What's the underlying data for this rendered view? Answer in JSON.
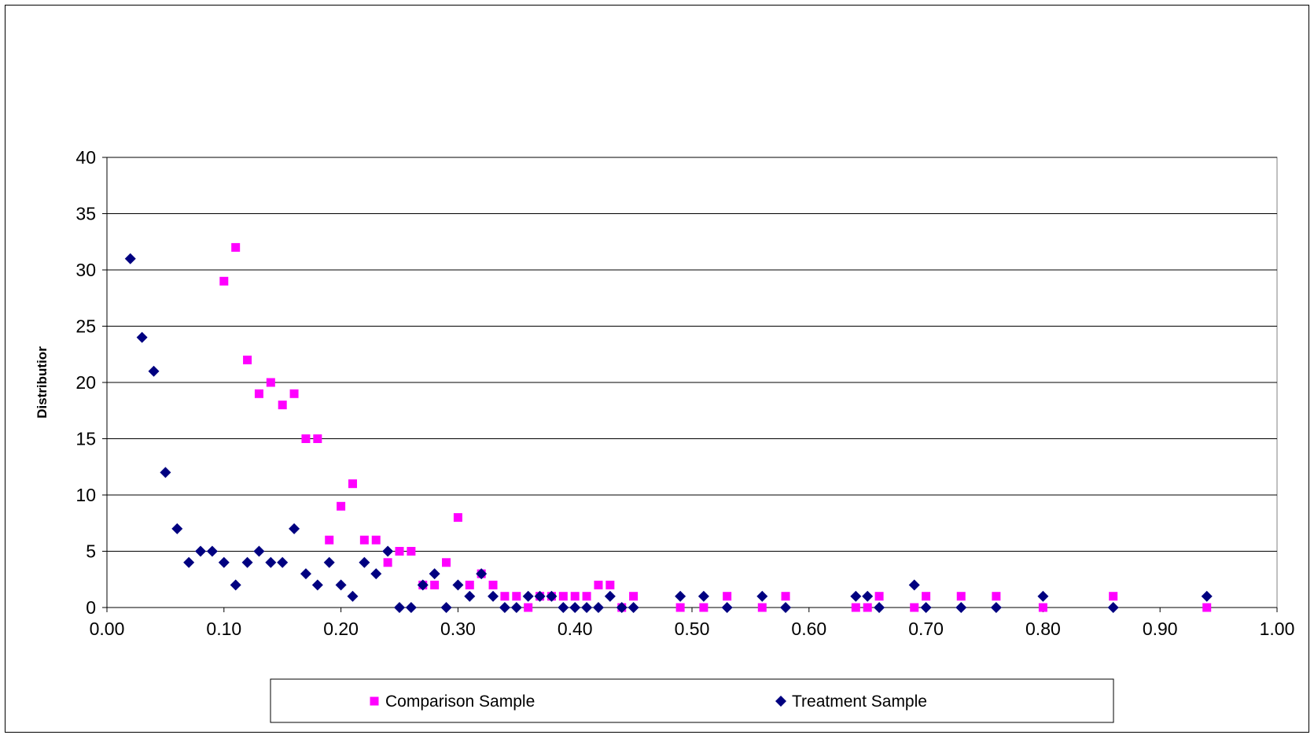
{
  "chart_data": {
    "type": "scatter",
    "title": "",
    "xlabel": "",
    "ylabel": "Distributior",
    "xlim": [
      0,
      1
    ],
    "ylim": [
      0,
      40
    ],
    "x_ticks": [
      "0.00",
      "0.10",
      "0.20",
      "0.30",
      "0.40",
      "0.50",
      "0.60",
      "0.70",
      "0.80",
      "0.90",
      "1.00"
    ],
    "y_ticks": [
      "0",
      "5",
      "10",
      "15",
      "20",
      "25",
      "30",
      "35",
      "40"
    ],
    "grid": "horizontal",
    "legend_position": "bottom",
    "series": [
      {
        "name": "Comparison Sample",
        "color": "#ff00ff",
        "marker": "square",
        "points": [
          [
            0.1,
            29
          ],
          [
            0.11,
            32
          ],
          [
            0.12,
            22
          ],
          [
            0.13,
            19
          ],
          [
            0.14,
            20
          ],
          [
            0.15,
            18
          ],
          [
            0.16,
            19
          ],
          [
            0.17,
            15
          ],
          [
            0.18,
            15
          ],
          [
            0.19,
            6
          ],
          [
            0.2,
            9
          ],
          [
            0.21,
            11
          ],
          [
            0.22,
            6
          ],
          [
            0.23,
            6
          ],
          [
            0.24,
            4
          ],
          [
            0.25,
            5
          ],
          [
            0.26,
            5
          ],
          [
            0.27,
            2
          ],
          [
            0.28,
            2
          ],
          [
            0.29,
            4
          ],
          [
            0.3,
            8
          ],
          [
            0.31,
            2
          ],
          [
            0.32,
            3
          ],
          [
            0.33,
            2
          ],
          [
            0.34,
            1
          ],
          [
            0.35,
            1
          ],
          [
            0.36,
            0
          ],
          [
            0.37,
            1
          ],
          [
            0.38,
            1
          ],
          [
            0.39,
            1
          ],
          [
            0.4,
            1
          ],
          [
            0.41,
            1
          ],
          [
            0.42,
            2
          ],
          [
            0.43,
            2
          ],
          [
            0.44,
            0
          ],
          [
            0.45,
            1
          ],
          [
            0.49,
            0
          ],
          [
            0.51,
            0
          ],
          [
            0.53,
            1
          ],
          [
            0.56,
            0
          ],
          [
            0.58,
            1
          ],
          [
            0.64,
            0
          ],
          [
            0.65,
            0
          ],
          [
            0.66,
            1
          ],
          [
            0.69,
            0
          ],
          [
            0.7,
            1
          ],
          [
            0.73,
            1
          ],
          [
            0.76,
            1
          ],
          [
            0.8,
            0
          ],
          [
            0.86,
            1
          ],
          [
            0.94,
            0
          ]
        ]
      },
      {
        "name": "Treatment Sample",
        "color": "#000080",
        "marker": "diamond",
        "points": [
          [
            0.02,
            31
          ],
          [
            0.03,
            24
          ],
          [
            0.04,
            21
          ],
          [
            0.05,
            12
          ],
          [
            0.06,
            7
          ],
          [
            0.07,
            4
          ],
          [
            0.08,
            5
          ],
          [
            0.09,
            5
          ],
          [
            0.1,
            4
          ],
          [
            0.11,
            2
          ],
          [
            0.12,
            4
          ],
          [
            0.13,
            5
          ],
          [
            0.14,
            4
          ],
          [
            0.15,
            4
          ],
          [
            0.16,
            7
          ],
          [
            0.17,
            3
          ],
          [
            0.18,
            2
          ],
          [
            0.19,
            4
          ],
          [
            0.2,
            2
          ],
          [
            0.21,
            1
          ],
          [
            0.22,
            4
          ],
          [
            0.23,
            3
          ],
          [
            0.24,
            5
          ],
          [
            0.25,
            0
          ],
          [
            0.26,
            0
          ],
          [
            0.27,
            2
          ],
          [
            0.28,
            3
          ],
          [
            0.29,
            0
          ],
          [
            0.3,
            2
          ],
          [
            0.31,
            1
          ],
          [
            0.32,
            3
          ],
          [
            0.33,
            1
          ],
          [
            0.34,
            0
          ],
          [
            0.35,
            0
          ],
          [
            0.36,
            1
          ],
          [
            0.37,
            1
          ],
          [
            0.38,
            1
          ],
          [
            0.39,
            0
          ],
          [
            0.4,
            0
          ],
          [
            0.41,
            0
          ],
          [
            0.42,
            0
          ],
          [
            0.43,
            1
          ],
          [
            0.44,
            0
          ],
          [
            0.45,
            0
          ],
          [
            0.49,
            1
          ],
          [
            0.51,
            1
          ],
          [
            0.53,
            0
          ],
          [
            0.56,
            1
          ],
          [
            0.58,
            0
          ],
          [
            0.64,
            1
          ],
          [
            0.65,
            1
          ],
          [
            0.66,
            0
          ],
          [
            0.69,
            2
          ],
          [
            0.7,
            0
          ],
          [
            0.73,
            0
          ],
          [
            0.76,
            0
          ],
          [
            0.8,
            1
          ],
          [
            0.86,
            0
          ],
          [
            0.94,
            1
          ]
        ]
      }
    ]
  }
}
